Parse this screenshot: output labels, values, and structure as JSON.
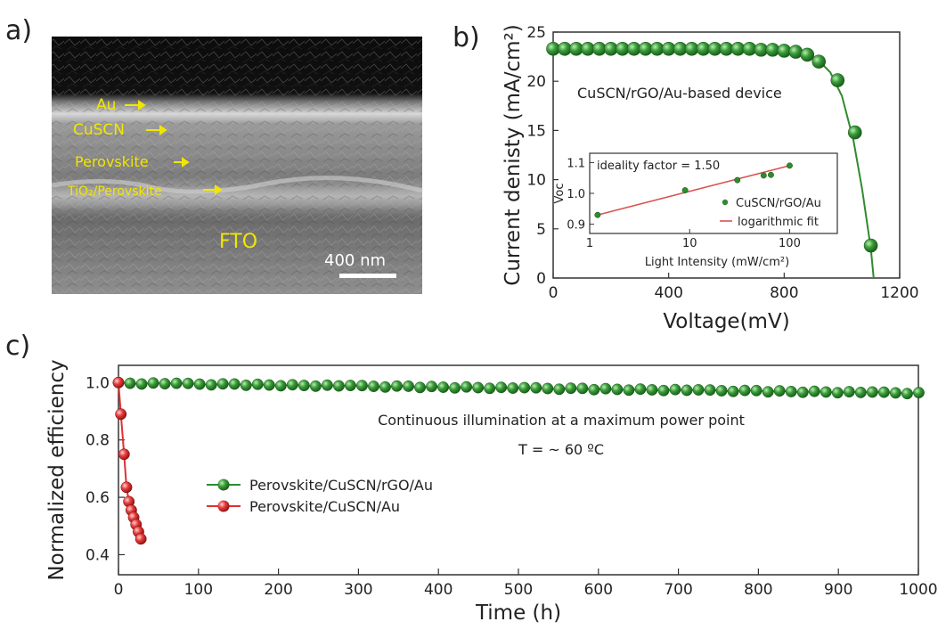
{
  "panel_labels": {
    "a": "a)",
    "b": "b)",
    "c": "c)"
  },
  "sem": {
    "layers": [
      "Au",
      "CuSCN",
      "Perovskite",
      "TiO₂/Perovskite",
      "FTO"
    ],
    "scale_bar": "400 nm",
    "colors": {
      "text": "#f2e600",
      "background_top": "#0c0c0c",
      "layer_gray": "#8a8a8a"
    }
  },
  "chart_data": [
    {
      "type": "line",
      "panel": "b",
      "xlabel": "Voltage(mV)",
      "ylabel": "Current denisty (mA/cm²)",
      "annotation": "CuSCN/rGO/Au-based device",
      "xlim": [
        0,
        1200
      ],
      "ylim": [
        0,
        25
      ],
      "xticks": [
        0,
        400,
        800,
        1200
      ],
      "yticks": [
        0,
        5,
        10,
        15,
        20,
        25
      ],
      "series": [
        {
          "color": "#2e8b2e",
          "x": [
            0,
            40,
            80,
            120,
            160,
            200,
            240,
            280,
            320,
            360,
            400,
            440,
            480,
            520,
            560,
            600,
            640,
            680,
            720,
            760,
            800,
            840,
            880,
            920,
            960,
            1000,
            1040,
            1070,
            1100,
            1110
          ],
          "y": [
            23.3,
            23.3,
            23.3,
            23.3,
            23.3,
            23.3,
            23.3,
            23.3,
            23.3,
            23.3,
            23.3,
            23.3,
            23.3,
            23.3,
            23.3,
            23.3,
            23.3,
            23.3,
            23.2,
            23.2,
            23.1,
            23.0,
            22.7,
            22.1,
            20.9,
            18.5,
            14.0,
            9.0,
            3.0,
            0.0
          ],
          "markers": [
            [
              0,
              23.3
            ],
            [
              40,
              23.3
            ],
            [
              80,
              23.3
            ],
            [
              120,
              23.3
            ],
            [
              160,
              23.3
            ],
            [
              200,
              23.3
            ],
            [
              240,
              23.3
            ],
            [
              280,
              23.3
            ],
            [
              320,
              23.3
            ],
            [
              360,
              23.3
            ],
            [
              400,
              23.3
            ],
            [
              440,
              23.3
            ],
            [
              480,
              23.3
            ],
            [
              520,
              23.3
            ],
            [
              560,
              23.3
            ],
            [
              600,
              23.3
            ],
            [
              640,
              23.3
            ],
            [
              680,
              23.3
            ],
            [
              720,
              23.2
            ],
            [
              760,
              23.2
            ],
            [
              800,
              23.1
            ],
            [
              840,
              23.0
            ],
            [
              880,
              22.7
            ],
            [
              920,
              22.0
            ],
            [
              985,
              20.1
            ],
            [
              1045,
              14.8
            ],
            [
              1100,
              3.3
            ]
          ]
        }
      ],
      "inset": {
        "xlabel": "Light Intensity (mW/cm²)",
        "ylabel": "Voc",
        "xscale": "log",
        "xlim": [
          1,
          300
        ],
        "ylim": [
          0.87,
          1.13
        ],
        "xticks": [
          1,
          10,
          100
        ],
        "yticks": [
          0.9,
          1.0,
          1.1
        ],
        "annotation": "ideality factor = 1.50",
        "legend": [
          "CuSCN/rGO/Au",
          "logarithmic fit"
        ],
        "points": {
          "x": [
            1.2,
            9,
            30,
            55,
            65,
            100
          ],
          "y": [
            0.93,
            1.01,
            1.043,
            1.058,
            1.06,
            1.09
          ]
        },
        "fit": {
          "x": [
            1.2,
            100
          ],
          "y": [
            0.93,
            1.09
          ]
        },
        "colors": {
          "points": "#2e8b2e",
          "fit": "#d9534f"
        }
      }
    },
    {
      "type": "line",
      "panel": "c",
      "xlabel": "Time (h)",
      "ylabel": "Normalized efficiency",
      "xlim": [
        0,
        1000
      ],
      "ylim": [
        0.33,
        1.06
      ],
      "xticks": [
        0,
        100,
        200,
        300,
        400,
        500,
        600,
        700,
        800,
        900,
        1000
      ],
      "yticks": [
        0.4,
        0.6,
        0.8,
        1.0
      ],
      "annotations": [
        "Continuous illumination at a maximum power point",
        "T = ~ 60 ºC"
      ],
      "legend_position": "left-middle",
      "series": [
        {
          "name": "Perovskite/CuSCN/rGO/Au",
          "color": "#2e8b2e",
          "x_start": 0,
          "x_step": 14.5,
          "count": 70,
          "y_start": 1.0,
          "y_end": 0.965
        },
        {
          "name": "Perovskite/CuSCN/Au",
          "color": "#e03030",
          "x": [
            0,
            3,
            7,
            10,
            13,
            16,
            19,
            22,
            25,
            28
          ],
          "y": [
            1.0,
            0.89,
            0.75,
            0.635,
            0.585,
            0.555,
            0.53,
            0.505,
            0.48,
            0.455
          ]
        }
      ]
    }
  ]
}
